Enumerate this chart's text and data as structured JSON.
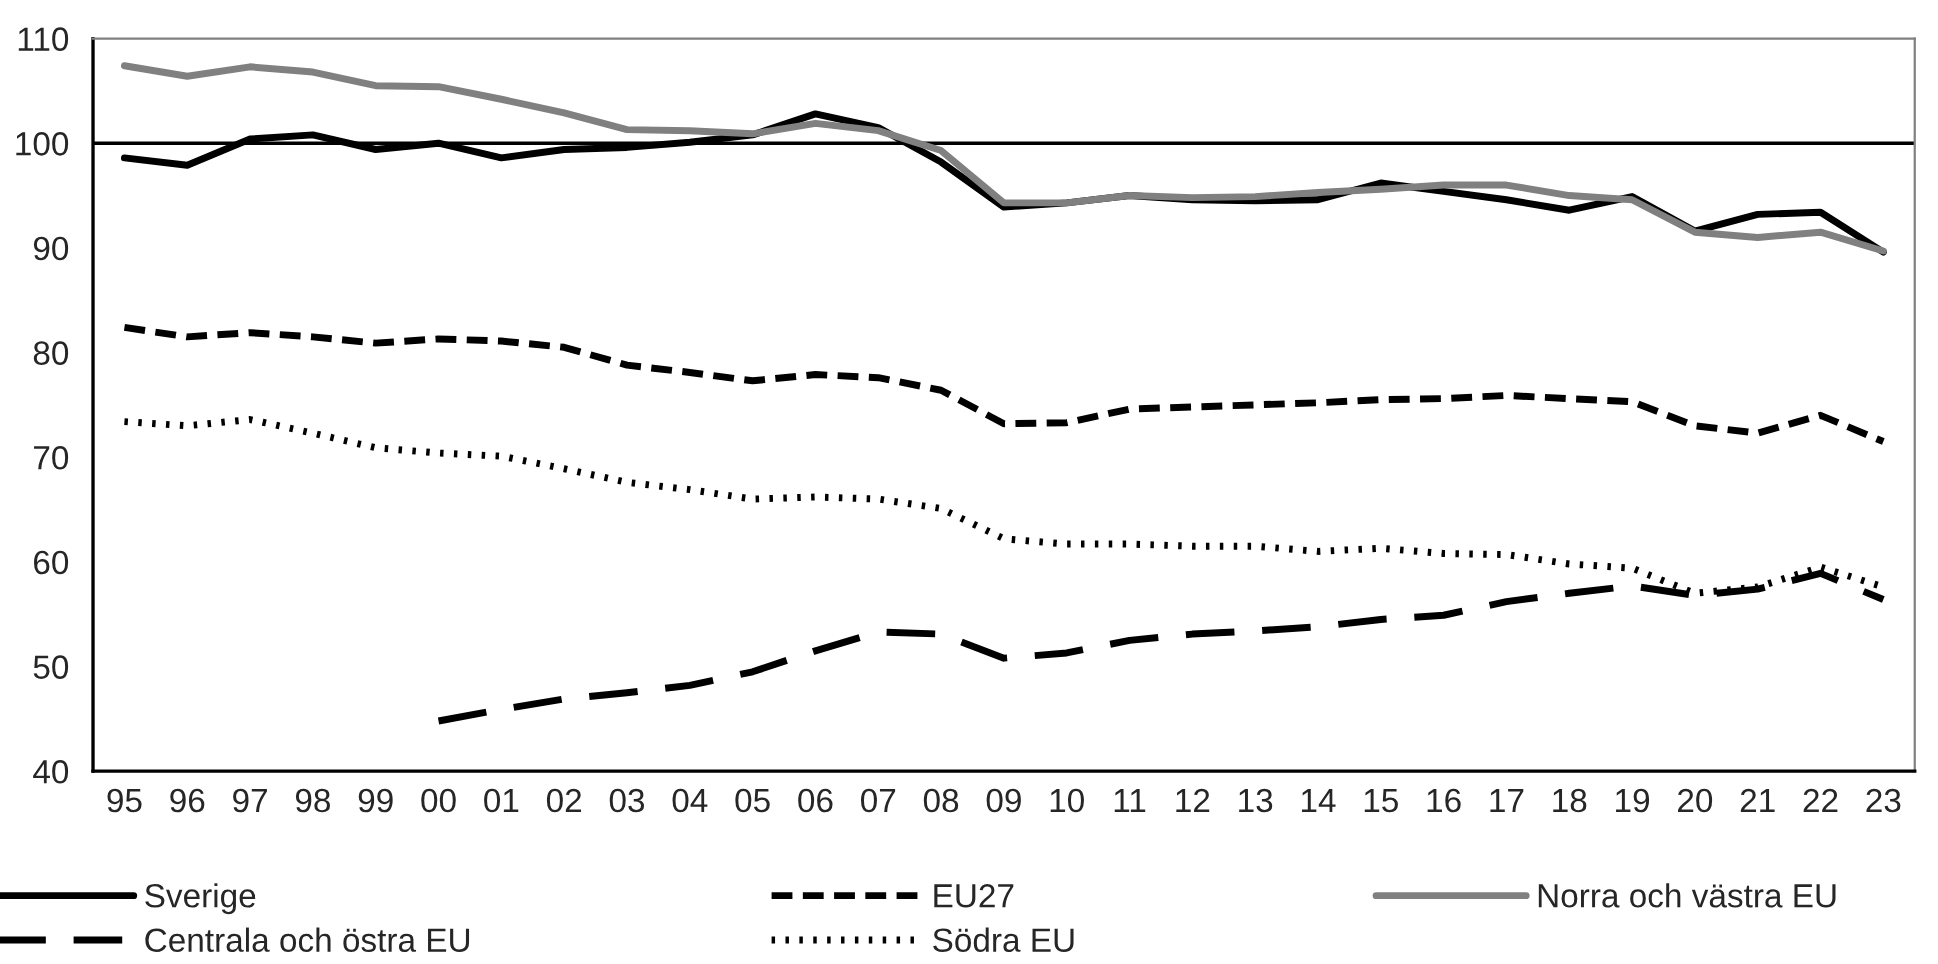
{
  "chart_data": {
    "type": "line",
    "categories": [
      "95",
      "96",
      "97",
      "98",
      "99",
      "00",
      "01",
      "02",
      "03",
      "04",
      "05",
      "06",
      "07",
      "08",
      "09",
      "10",
      "11",
      "12",
      "13",
      "14",
      "15",
      "16",
      "17",
      "18",
      "19",
      "20",
      "21",
      "22",
      "23"
    ],
    "series": [
      {
        "name": "Sverige",
        "color": "#000000",
        "line_style": "solid",
        "values": [
          98.6,
          97.9,
          100.4,
          100.8,
          99.4,
          100.0,
          98.6,
          99.4,
          99.6,
          100.1,
          100.8,
          102.8,
          101.5,
          98.2,
          93.9,
          94.3,
          95.0,
          94.6,
          94.5,
          94.6,
          96.2,
          95.4,
          94.6,
          93.6,
          94.9,
          91.6,
          93.2,
          93.4,
          89.6
        ]
      },
      {
        "name": "EU27",
        "color": "#000000",
        "line_style": "dashed",
        "values": [
          82.4,
          81.5,
          81.9,
          81.5,
          80.9,
          81.3,
          81.1,
          80.5,
          78.8,
          78.1,
          77.3,
          77.9,
          77.6,
          76.4,
          73.2,
          73.3,
          74.6,
          74.8,
          75.0,
          75.2,
          75.5,
          75.6,
          75.9,
          75.6,
          75.3,
          73.0,
          72.3,
          74.0,
          71.5
        ]
      },
      {
        "name": "Norra och västra EU",
        "color": "#808080",
        "line_style": "solid",
        "values": [
          107.4,
          106.4,
          107.3,
          106.8,
          105.5,
          105.4,
          104.2,
          102.9,
          101.3,
          101.2,
          100.9,
          101.9,
          101.2,
          99.3,
          94.3,
          94.3,
          95.0,
          94.8,
          94.9,
          95.3,
          95.6,
          96.0,
          96.0,
          95.0,
          94.6,
          91.5,
          91.0,
          91.5,
          89.7
        ]
      },
      {
        "name": "Centrala och östra EU",
        "color": "#000000",
        "line_style": "longdash",
        "values": [
          null,
          null,
          null,
          null,
          null,
          44.8,
          45.9,
          46.9,
          47.5,
          48.2,
          49.5,
          51.5,
          53.3,
          53.1,
          50.8,
          51.3,
          52.5,
          53.1,
          53.4,
          53.8,
          54.5,
          54.9,
          56.2,
          57.0,
          57.7,
          56.8,
          57.4,
          58.9,
          56.4
        ]
      },
      {
        "name": "Södra EU",
        "color": "#000000",
        "line_style": "dotted",
        "values": [
          73.4,
          73.0,
          73.6,
          72.3,
          70.9,
          70.4,
          70.1,
          68.9,
          67.6,
          66.9,
          66.0,
          66.2,
          66.0,
          65.1,
          62.2,
          61.7,
          61.7,
          61.5,
          61.5,
          61.0,
          61.3,
          60.8,
          60.7,
          59.8,
          59.4,
          57.0,
          57.6,
          59.5,
          57.6
        ]
      }
    ],
    "ylim": [
      40,
      110
    ],
    "yticks": [
      40,
      50,
      60,
      70,
      80,
      90,
      100,
      110
    ],
    "ref_lines": [
      {
        "axis": "y",
        "value": 100,
        "color": "#000000"
      }
    ],
    "grid": false,
    "legend": "bottom",
    "marker": "none"
  }
}
